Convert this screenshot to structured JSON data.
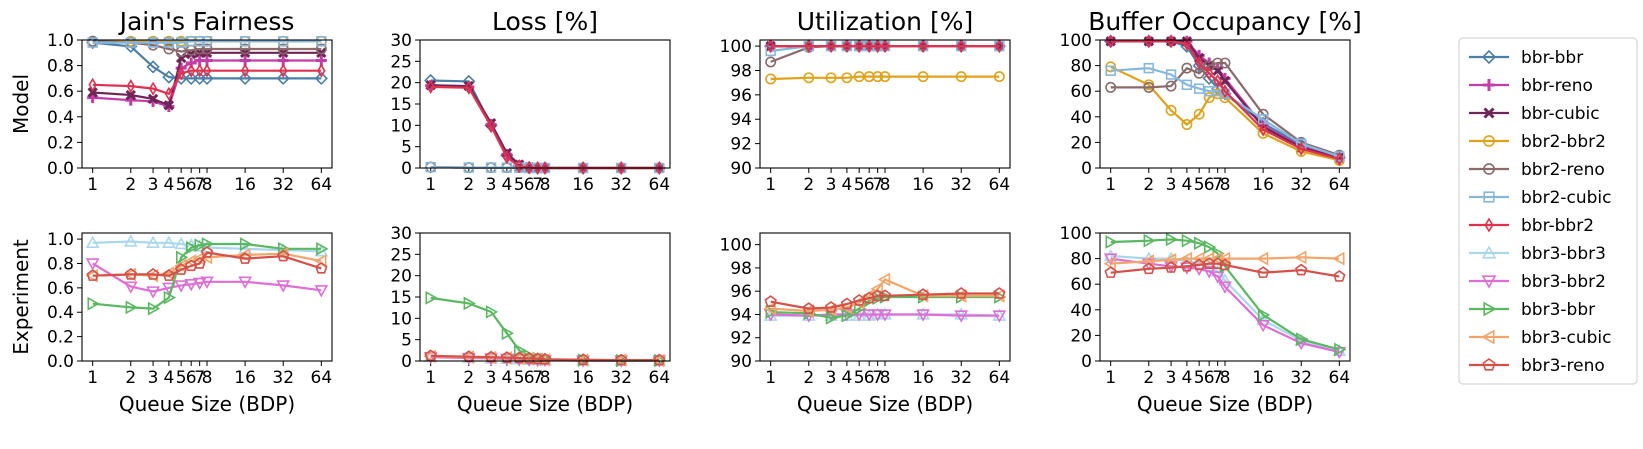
{
  "figure": {
    "rows": [
      "Model",
      "Experiment"
    ],
    "xlabel": "Queue Size (BDP)",
    "legend_placement": "right"
  },
  "legend": [
    {
      "name": "bbr-bbr",
      "color": "#4a7fa8",
      "marker": "diamond"
    },
    {
      "name": "bbr-reno",
      "color": "#c43ca8",
      "marker": "plus"
    },
    {
      "name": "bbr-cubic",
      "color": "#6e2558",
      "marker": "xsquare"
    },
    {
      "name": "bbr2-bbr2",
      "color": "#e0a21a",
      "marker": "circle"
    },
    {
      "name": "bbr2-reno",
      "color": "#8a6a6a",
      "marker": "circle"
    },
    {
      "name": "bbr2-cubic",
      "color": "#86b8de",
      "marker": "square"
    },
    {
      "name": "bbr-bbr2",
      "color": "#e0314e",
      "marker": "thindiamond"
    },
    {
      "name": "bbr3-bbr3",
      "color": "#a9d8ec",
      "marker": "triangle-up"
    },
    {
      "name": "bbr3-bbr2",
      "color": "#de6ed6",
      "marker": "triangle-down"
    },
    {
      "name": "bbr3-bbr",
      "color": "#59b860",
      "marker": "triangle-right"
    },
    {
      "name": "bbr3-cubic",
      "color": "#f2a46a",
      "marker": "triangle-left"
    },
    {
      "name": "bbr3-reno",
      "color": "#d45048",
      "marker": "pentagon"
    }
  ],
  "chart_data": [
    {
      "type": "line",
      "title": "Jain's Fairness",
      "row_label": "Model",
      "xscale": "log2",
      "x": [
        1,
        2,
        3,
        4,
        5,
        6,
        7,
        8,
        16,
        32,
        64
      ],
      "xticks": [
        "1",
        "2",
        "3",
        "4",
        "5",
        "6",
        "7",
        "8",
        "16",
        "32",
        "64"
      ],
      "ylim": [
        0,
        1.0
      ],
      "yticks": [
        "0.0",
        "0.2",
        "0.4",
        "0.6",
        "0.8",
        "1.0"
      ],
      "series": [
        {
          "name": "bbr-bbr",
          "values": [
            0.98,
            0.95,
            0.79,
            0.71,
            0.7,
            0.7,
            0.7,
            0.7,
            0.7,
            0.7,
            0.7
          ]
        },
        {
          "name": "bbr-reno",
          "values": [
            0.55,
            0.53,
            0.52,
            0.48,
            0.78,
            0.82,
            0.84,
            0.84,
            0.84,
            0.84,
            0.84
          ]
        },
        {
          "name": "bbr-cubic",
          "values": [
            0.59,
            0.57,
            0.54,
            0.49,
            0.86,
            0.89,
            0.9,
            0.9,
            0.9,
            0.9,
            0.9
          ]
        },
        {
          "name": "bbr2-bbr2",
          "values": [
            0.99,
            0.99,
            0.99,
            0.99,
            0.99,
            0.99,
            0.99,
            0.99,
            0.99,
            0.99,
            0.99
          ]
        },
        {
          "name": "bbr2-reno",
          "values": [
            0.99,
            0.98,
            0.96,
            0.93,
            0.91,
            0.92,
            0.93,
            0.93,
            0.93,
            0.93,
            0.93
          ]
        },
        {
          "name": "bbr2-cubic",
          "values": [
            0.98,
            0.98,
            0.98,
            0.98,
            0.98,
            0.99,
            0.99,
            0.99,
            0.99,
            0.99,
            0.99
          ]
        },
        {
          "name": "bbr-bbr2",
          "values": [
            0.65,
            0.64,
            0.62,
            0.58,
            0.74,
            0.76,
            0.76,
            0.76,
            0.76,
            0.76,
            0.76
          ]
        }
      ]
    },
    {
      "type": "line",
      "title": "Loss [%]",
      "row_label": "Model",
      "xscale": "log2",
      "x": [
        1,
        2,
        3,
        4,
        5,
        6,
        7,
        8,
        16,
        32,
        64
      ],
      "xticks": [
        "1",
        "2",
        "3",
        "4",
        "5",
        "6",
        "7",
        "8",
        "16",
        "32",
        "64"
      ],
      "ylim": [
        0,
        30
      ],
      "yticks": [
        "0",
        "5",
        "10",
        "15",
        "20",
        "25",
        "30"
      ],
      "series": [
        {
          "name": "bbr-bbr",
          "values": [
            20.5,
            20.3,
            10.0,
            3.0,
            0.5,
            0.1,
            0.0,
            0.0,
            0.0,
            0.0,
            0.0
          ]
        },
        {
          "name": "bbr-reno",
          "values": [
            19.3,
            19.0,
            10.2,
            3.2,
            0.6,
            0.1,
            0.0,
            0.0,
            0.0,
            0.0,
            0.0
          ]
        },
        {
          "name": "bbr-cubic",
          "values": [
            19.4,
            19.2,
            10.5,
            3.5,
            0.8,
            0.2,
            0.0,
            0.0,
            0.0,
            0.0,
            0.0
          ]
        },
        {
          "name": "bbr2-bbr2",
          "values": [
            0.2,
            0.1,
            0.1,
            0.1,
            0.1,
            0.0,
            0.0,
            0.0,
            0.0,
            0.0,
            0.0
          ]
        },
        {
          "name": "bbr2-reno",
          "values": [
            0.2,
            0.1,
            0.1,
            0.1,
            0.1,
            0.0,
            0.0,
            0.0,
            0.0,
            0.0,
            0.0
          ]
        },
        {
          "name": "bbr2-cubic",
          "values": [
            0.2,
            0.1,
            0.1,
            0.1,
            0.1,
            0.0,
            0.0,
            0.0,
            0.0,
            0.0,
            0.0
          ]
        },
        {
          "name": "bbr-bbr2",
          "values": [
            19.0,
            18.8,
            9.8,
            2.5,
            0.4,
            0.1,
            0.0,
            0.0,
            0.0,
            0.0,
            0.0
          ]
        }
      ]
    },
    {
      "type": "line",
      "title": "Utilization [%]",
      "row_label": "Model",
      "xscale": "log2",
      "x": [
        1,
        2,
        3,
        4,
        5,
        6,
        7,
        8,
        16,
        32,
        64
      ],
      "xticks": [
        "1",
        "2",
        "3",
        "4",
        "5",
        "6",
        "7",
        "8",
        "16",
        "32",
        "64"
      ],
      "ylim": [
        90,
        100.5
      ],
      "yticks": [
        "90",
        "92",
        "94",
        "96",
        "98",
        "100"
      ],
      "series": [
        {
          "name": "bbr-bbr",
          "values": [
            100,
            100,
            100,
            100,
            100,
            100,
            100,
            100,
            100,
            100,
            100
          ]
        },
        {
          "name": "bbr-reno",
          "values": [
            100,
            100,
            100,
            100,
            100,
            100,
            100,
            100,
            100,
            100,
            100
          ]
        },
        {
          "name": "bbr-cubic",
          "values": [
            100,
            100,
            100,
            100,
            100,
            100,
            100,
            100,
            100,
            100,
            100
          ]
        },
        {
          "name": "bbr2-bbr2",
          "values": [
            97.3,
            97.4,
            97.4,
            97.4,
            97.5,
            97.5,
            97.5,
            97.5,
            97.5,
            97.5,
            97.5
          ]
        },
        {
          "name": "bbr2-reno",
          "values": [
            98.7,
            99.9,
            100,
            100,
            100,
            100,
            100,
            100,
            100,
            100,
            100
          ]
        },
        {
          "name": "bbr2-cubic",
          "values": [
            99.6,
            100,
            100,
            100,
            100,
            100,
            100,
            100,
            100,
            100,
            100
          ]
        },
        {
          "name": "bbr-bbr2",
          "values": [
            100,
            100,
            100,
            100,
            100,
            100,
            100,
            100,
            100,
            100,
            100
          ]
        }
      ]
    },
    {
      "type": "line",
      "title": "Buffer Occupancy [%]",
      "row_label": "Model",
      "xscale": "log2",
      "x": [
        1,
        2,
        3,
        4,
        5,
        6,
        7,
        8,
        16,
        32,
        64
      ],
      "xticks": [
        "1",
        "2",
        "3",
        "4",
        "5",
        "6",
        "7",
        "8",
        "16",
        "32",
        "64"
      ],
      "ylim": [
        0,
        100
      ],
      "yticks": [
        "0",
        "20",
        "40",
        "60",
        "80",
        "100"
      ],
      "series": [
        {
          "name": "bbr-bbr",
          "values": [
            99,
            99,
            99,
            95,
            80,
            70,
            62,
            58,
            35,
            18,
            8
          ]
        },
        {
          "name": "bbr-reno",
          "values": [
            99,
            99,
            99,
            99,
            88,
            82,
            78,
            70,
            33,
            17,
            8
          ]
        },
        {
          "name": "bbr-cubic",
          "values": [
            99,
            99,
            99,
            99,
            86,
            80,
            76,
            68,
            32,
            16,
            8
          ]
        },
        {
          "name": "bbr2-bbr2",
          "values": [
            79,
            65,
            45,
            34,
            42,
            55,
            58,
            55,
            27,
            13,
            6
          ]
        },
        {
          "name": "bbr2-reno",
          "values": [
            63,
            63,
            64,
            78,
            74,
            80,
            82,
            82,
            42,
            20,
            10
          ]
        },
        {
          "name": "bbr2-cubic",
          "values": [
            76,
            78,
            73,
            65,
            62,
            60,
            60,
            58,
            38,
            19,
            9
          ]
        },
        {
          "name": "bbr-bbr2",
          "values": [
            99,
            99,
            99,
            97,
            82,
            74,
            68,
            60,
            30,
            15,
            7
          ]
        }
      ]
    },
    {
      "type": "line",
      "title": "",
      "row_label": "Experiment",
      "xscale": "log2",
      "x": [
        1,
        2,
        3,
        4,
        5,
        6,
        7,
        8,
        16,
        32,
        64
      ],
      "xticks": [
        "1",
        "2",
        "3",
        "4",
        "5",
        "6",
        "7",
        "8",
        "16",
        "32",
        "64"
      ],
      "ylim": [
        0,
        1.05
      ],
      "yticks": [
        "0.0",
        "0.2",
        "0.4",
        "0.6",
        "0.8",
        "1.0"
      ],
      "series": [
        {
          "name": "bbr3-bbr3",
          "values": [
            0.97,
            0.98,
            0.97,
            0.97,
            0.96,
            0.95,
            0.94,
            0.93,
            0.92,
            0.91,
            0.9
          ]
        },
        {
          "name": "bbr3-bbr2",
          "values": [
            0.8,
            0.61,
            0.57,
            0.6,
            0.62,
            0.63,
            0.64,
            0.65,
            0.65,
            0.62,
            0.58
          ]
        },
        {
          "name": "bbr3-bbr",
          "values": [
            0.47,
            0.44,
            0.43,
            0.52,
            0.85,
            0.93,
            0.95,
            0.96,
            0.96,
            0.92,
            0.92
          ]
        },
        {
          "name": "bbr3-cubic",
          "values": [
            0.7,
            0.71,
            0.7,
            0.72,
            0.78,
            0.82,
            0.84,
            0.85,
            0.87,
            0.88,
            0.82
          ]
        },
        {
          "name": "bbr3-reno",
          "values": [
            0.7,
            0.71,
            0.71,
            0.7,
            0.75,
            0.78,
            0.8,
            0.89,
            0.84,
            0.86,
            0.76
          ]
        }
      ]
    },
    {
      "type": "line",
      "title": "",
      "row_label": "Experiment",
      "xscale": "log2",
      "x": [
        1,
        2,
        3,
        4,
        5,
        6,
        7,
        8,
        16,
        32,
        64
      ],
      "xticks": [
        "1",
        "2",
        "3",
        "4",
        "5",
        "6",
        "7",
        "8",
        "16",
        "32",
        "64"
      ],
      "ylim": [
        0,
        30
      ],
      "yticks": [
        "0",
        "5",
        "10",
        "15",
        "20",
        "25",
        "30"
      ],
      "series": [
        {
          "name": "bbr3-bbr3",
          "values": [
            1.0,
            0.8,
            0.6,
            0.5,
            0.4,
            0.3,
            0.2,
            0.2,
            0.1,
            0.1,
            0.1
          ]
        },
        {
          "name": "bbr3-bbr2",
          "values": [
            0.9,
            0.7,
            0.6,
            0.5,
            0.4,
            0.3,
            0.2,
            0.2,
            0.1,
            0.1,
            0.1
          ]
        },
        {
          "name": "bbr3-bbr",
          "values": [
            14.8,
            13.5,
            11.5,
            6.5,
            2.5,
            1.2,
            0.6,
            0.4,
            0.2,
            0.1,
            0.1
          ]
        },
        {
          "name": "bbr3-cubic",
          "values": [
            1.1,
            0.9,
            0.8,
            0.7,
            0.6,
            0.5,
            0.4,
            0.3,
            0.2,
            0.2,
            0.1
          ]
        },
        {
          "name": "bbr3-reno",
          "values": [
            1.2,
            1.0,
            0.9,
            0.8,
            0.7,
            0.6,
            0.5,
            0.4,
            0.3,
            0.2,
            0.2
          ]
        }
      ]
    },
    {
      "type": "line",
      "title": "",
      "row_label": "Experiment",
      "xscale": "log2",
      "x": [
        1,
        2,
        3,
        4,
        5,
        6,
        7,
        8,
        16,
        32,
        64
      ],
      "xticks": [
        "1",
        "2",
        "3",
        "4",
        "5",
        "6",
        "7",
        "8",
        "16",
        "32",
        "64"
      ],
      "ylim": [
        90,
        101
      ],
      "yticks": [
        "90",
        "92",
        "94",
        "96",
        "98",
        "100"
      ],
      "series": [
        {
          "name": "bbr3-bbr3",
          "values": [
            93.9,
            93.9,
            93.9,
            93.9,
            93.9,
            93.9,
            94.0,
            94.0,
            94.0,
            94.0,
            93.9
          ]
        },
        {
          "name": "bbr3-bbr2",
          "values": [
            94.0,
            93.9,
            94.0,
            94.0,
            94.0,
            94.0,
            94.0,
            94.0,
            94.0,
            93.9,
            93.9
          ]
        },
        {
          "name": "bbr3-bbr",
          "values": [
            94.2,
            94.1,
            93.7,
            93.9,
            94.5,
            95.2,
            95.4,
            95.5,
            95.5,
            95.5,
            95.5
          ]
        },
        {
          "name": "bbr3-cubic",
          "values": [
            94.5,
            94.3,
            94.4,
            94.6,
            95.0,
            95.6,
            96.2,
            97.0,
            95.6,
            95.6,
            95.6
          ]
        },
        {
          "name": "bbr3-reno",
          "values": [
            95.1,
            94.5,
            94.6,
            94.9,
            95.2,
            95.4,
            95.6,
            95.6,
            95.7,
            95.8,
            95.8
          ]
        }
      ]
    },
    {
      "type": "line",
      "title": "",
      "row_label": "Experiment",
      "xscale": "log2",
      "x": [
        1,
        2,
        3,
        4,
        5,
        6,
        7,
        8,
        16,
        32,
        64
      ],
      "xticks": [
        "1",
        "2",
        "3",
        "4",
        "5",
        "6",
        "7",
        "8",
        "16",
        "32",
        "64"
      ],
      "ylim": [
        0,
        100
      ],
      "yticks": [
        "0",
        "20",
        "40",
        "60",
        "80",
        "100"
      ],
      "series": [
        {
          "name": "bbr3-bbr3",
          "values": [
            82,
            80,
            80,
            78,
            76,
            74,
            70,
            63,
            32,
            16,
            8
          ]
        },
        {
          "name": "bbr3-bbr2",
          "values": [
            80,
            76,
            74,
            73,
            72,
            70,
            66,
            58,
            28,
            14,
            7
          ]
        },
        {
          "name": "bbr3-bbr",
          "values": [
            93,
            94,
            95,
            94,
            92,
            89,
            84,
            74,
            36,
            17,
            9
          ]
        },
        {
          "name": "bbr3-cubic",
          "values": [
            76,
            78,
            79,
            80,
            80,
            80,
            80,
            80,
            80,
            81,
            80
          ]
        },
        {
          "name": "bbr3-reno",
          "values": [
            69,
            72,
            73,
            74,
            75,
            76,
            76,
            75,
            69,
            71,
            66
          ]
        }
      ]
    }
  ]
}
